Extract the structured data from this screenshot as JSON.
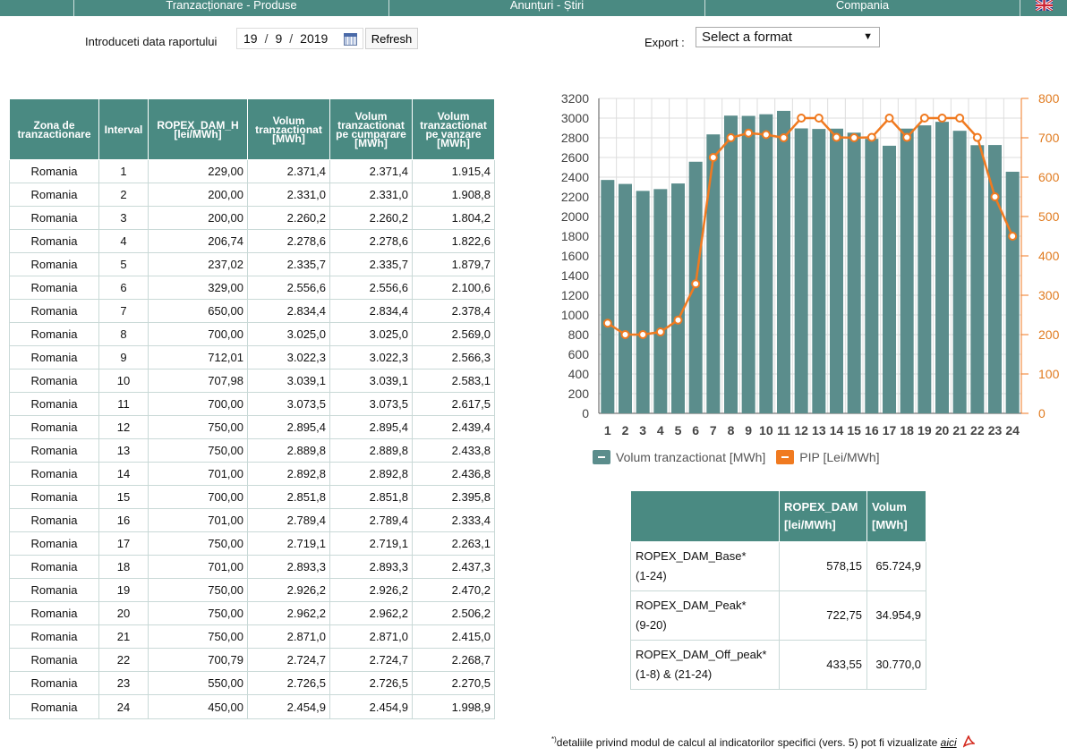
{
  "nav": {
    "items": [
      "Tranzacționare - Produse",
      "Anunțuri - Știri",
      "Compania"
    ],
    "language_icon": "uk-flag-icon"
  },
  "report": {
    "date_label": "Introduceti data raportului",
    "day": "19",
    "month": "9",
    "year": "2019",
    "refresh_label": "Refresh"
  },
  "export": {
    "label": "Export :",
    "selected": "Select a format"
  },
  "table": {
    "headers": [
      "Zona de tranzactionare",
      "Interval",
      "ROPEX_DAM_H [lei/MWh]",
      "Volum tranzactionat [MWh]",
      "Volum tranzactionat pe cumparare [MWh]",
      "Volum tranzactionat pe vanzare [MWh]"
    ],
    "rows": [
      [
        "Romania",
        "1",
        "229,00",
        "2.371,4",
        "2.371,4",
        "1.915,4"
      ],
      [
        "Romania",
        "2",
        "200,00",
        "2.331,0",
        "2.331,0",
        "1.908,8"
      ],
      [
        "Romania",
        "3",
        "200,00",
        "2.260,2",
        "2.260,2",
        "1.804,2"
      ],
      [
        "Romania",
        "4",
        "206,74",
        "2.278,6",
        "2.278,6",
        "1.822,6"
      ],
      [
        "Romania",
        "5",
        "237,02",
        "2.335,7",
        "2.335,7",
        "1.879,7"
      ],
      [
        "Romania",
        "6",
        "329,00",
        "2.556,6",
        "2.556,6",
        "2.100,6"
      ],
      [
        "Romania",
        "7",
        "650,00",
        "2.834,4",
        "2.834,4",
        "2.378,4"
      ],
      [
        "Romania",
        "8",
        "700,00",
        "3.025,0",
        "3.025,0",
        "2.569,0"
      ],
      [
        "Romania",
        "9",
        "712,01",
        "3.022,3",
        "3.022,3",
        "2.566,3"
      ],
      [
        "Romania",
        "10",
        "707,98",
        "3.039,1",
        "3.039,1",
        "2.583,1"
      ],
      [
        "Romania",
        "11",
        "700,00",
        "3.073,5",
        "3.073,5",
        "2.617,5"
      ],
      [
        "Romania",
        "12",
        "750,00",
        "2.895,4",
        "2.895,4",
        "2.439,4"
      ],
      [
        "Romania",
        "13",
        "750,00",
        "2.889,8",
        "2.889,8",
        "2.433,8"
      ],
      [
        "Romania",
        "14",
        "701,00",
        "2.892,8",
        "2.892,8",
        "2.436,8"
      ],
      [
        "Romania",
        "15",
        "700,00",
        "2.851,8",
        "2.851,8",
        "2.395,8"
      ],
      [
        "Romania",
        "16",
        "701,00",
        "2.789,4",
        "2.789,4",
        "2.333,4"
      ],
      [
        "Romania",
        "17",
        "750,00",
        "2.719,1",
        "2.719,1",
        "2.263,1"
      ],
      [
        "Romania",
        "18",
        "701,00",
        "2.893,3",
        "2.893,3",
        "2.437,3"
      ],
      [
        "Romania",
        "19",
        "750,00",
        "2.926,2",
        "2.926,2",
        "2.470,2"
      ],
      [
        "Romania",
        "20",
        "750,00",
        "2.962,2",
        "2.962,2",
        "2.506,2"
      ],
      [
        "Romania",
        "21",
        "750,00",
        "2.871,0",
        "2.871,0",
        "2.415,0"
      ],
      [
        "Romania",
        "22",
        "700,79",
        "2.724,7",
        "2.724,7",
        "2.268,7"
      ],
      [
        "Romania",
        "23",
        "550,00",
        "2.726,5",
        "2.726,5",
        "2.270,5"
      ],
      [
        "Romania",
        "24",
        "450,00",
        "2.454,9",
        "2.454,9",
        "1.998,9"
      ]
    ]
  },
  "chart_data": {
    "type": "bar",
    "categories": [
      "1",
      "2",
      "3",
      "4",
      "5",
      "6",
      "7",
      "8",
      "9",
      "10",
      "11",
      "12",
      "13",
      "14",
      "15",
      "16",
      "17",
      "18",
      "19",
      "20",
      "21",
      "22",
      "23",
      "24"
    ],
    "series": [
      {
        "name": "Volum tranzactionat [MWh]",
        "type": "bar",
        "axis": "left",
        "color": "#5b8d8c",
        "values": [
          2371.4,
          2331.0,
          2260.2,
          2278.6,
          2335.7,
          2556.6,
          2834.4,
          3025.0,
          3022.3,
          3039.1,
          3073.5,
          2895.4,
          2889.8,
          2892.8,
          2851.8,
          2789.4,
          2719.1,
          2893.3,
          2926.2,
          2962.2,
          2871.0,
          2724.7,
          2726.5,
          2454.9
        ]
      },
      {
        "name": "PIP [Lei/MWh]",
        "type": "line",
        "axis": "right",
        "color": "#f07a20",
        "values": [
          229.0,
          200.0,
          200.0,
          206.74,
          237.02,
          329.0,
          650.0,
          700.0,
          712.01,
          707.98,
          700.0,
          750.0,
          750.0,
          701.0,
          700.0,
          701.0,
          750.0,
          701.0,
          750.0,
          750.0,
          750.0,
          700.79,
          550.0,
          450.0
        ]
      }
    ],
    "ylim": [
      0,
      3200
    ],
    "yticks": [
      0,
      200,
      400,
      600,
      800,
      1000,
      1200,
      1400,
      1600,
      1800,
      2000,
      2200,
      2400,
      2600,
      2800,
      3000,
      3200
    ],
    "y2lim": [
      0,
      800
    ],
    "y2ticks": [
      0,
      100,
      200,
      300,
      400,
      500,
      600,
      700,
      800
    ],
    "grid": true,
    "legend": "bottom"
  },
  "summary": {
    "headers": [
      "",
      "ROPEX_DAM [lei/MWh]",
      "Volum [MWh]"
    ],
    "rows": [
      {
        "name": "ROPEX_DAM_Base*",
        "range": "(1-24)",
        "price": "578,15",
        "volume": "65.724,9"
      },
      {
        "name": "ROPEX_DAM_Peak*",
        "range": "(9-20)",
        "price": "722,75",
        "volume": "34.954,9"
      },
      {
        "name": "ROPEX_DAM_Off_peak*",
        "range": "(1-8) & (21-24)",
        "price": "433,55",
        "volume": "30.770,0"
      }
    ]
  },
  "footnote": {
    "mark": "*)",
    "text": "detaliile privind modul de calcul al indicatorilor specifici (vers. 5) pot fi vizualizate",
    "link_text": "aici"
  }
}
